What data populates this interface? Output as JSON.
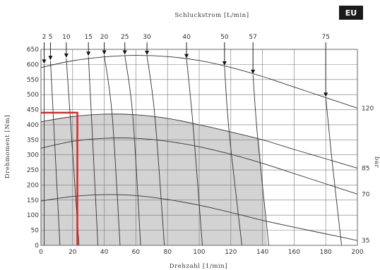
{
  "badge": "EU",
  "chart_data": {
    "type": "line",
    "xlabel": "Drehzahl [1/min]",
    "ylabel": "Drehmoment [Nm]",
    "top_axis_label": "Schluckstrom [L/min]",
    "right_axis_label": "bar",
    "xlim": [
      0,
      200
    ],
    "ylim": [
      0,
      650
    ],
    "x_ticks": [
      0,
      20,
      40,
      60,
      80,
      100,
      120,
      140,
      160,
      180,
      200
    ],
    "y_ticks": [
      0,
      50,
      100,
      150,
      200,
      250,
      300,
      350,
      400,
      450,
      500,
      550,
      600,
      650
    ],
    "grid": true,
    "shaded_region": {
      "upper_curve": [
        [
          0,
          410
        ],
        [
          20,
          427
        ],
        [
          40,
          435
        ],
        [
          60,
          433
        ],
        [
          80,
          421
        ],
        [
          100,
          400
        ],
        [
          120,
          376
        ],
        [
          138,
          354
        ],
        [
          143,
          0
        ]
      ],
      "corner_x": 138
    },
    "pressure_curves": [
      {
        "label": "120",
        "points": [
          [
            0,
            590
          ],
          [
            20,
            612
          ],
          [
            40,
            625
          ],
          [
            60,
            630
          ],
          [
            80,
            626
          ],
          [
            100,
            613
          ],
          [
            120,
            590
          ],
          [
            140,
            560
          ],
          [
            160,
            525
          ],
          [
            180,
            490
          ],
          [
            200,
            455
          ]
        ]
      },
      {
        "label": "85",
        "points": [
          [
            0,
            410
          ],
          [
            20,
            427
          ],
          [
            40,
            435
          ],
          [
            60,
            433
          ],
          [
            80,
            421
          ],
          [
            100,
            400
          ],
          [
            120,
            376
          ],
          [
            140,
            350
          ],
          [
            160,
            318
          ],
          [
            180,
            287
          ],
          [
            200,
            256
          ]
        ]
      },
      {
        "label": "70",
        "points": [
          [
            0,
            322
          ],
          [
            20,
            345
          ],
          [
            40,
            355
          ],
          [
            60,
            355
          ],
          [
            80,
            345
          ],
          [
            100,
            327
          ],
          [
            120,
            302
          ],
          [
            140,
            272
          ],
          [
            160,
            238
          ],
          [
            180,
            204
          ],
          [
            200,
            170
          ]
        ]
      },
      {
        "label": "35",
        "points": [
          [
            0,
            147
          ],
          [
            20,
            162
          ],
          [
            40,
            168
          ],
          [
            60,
            165
          ],
          [
            80,
            152
          ],
          [
            100,
            133
          ],
          [
            120,
            109
          ],
          [
            140,
            83
          ],
          [
            160,
            60
          ],
          [
            180,
            38
          ],
          [
            200,
            16
          ]
        ]
      }
    ],
    "flow_lines": [
      {
        "label": "2",
        "points": [
          [
            2,
            600
          ],
          [
            2,
            0
          ]
        ]
      },
      {
        "label": "5",
        "points": [
          [
            6,
            612
          ],
          [
            12,
            0
          ]
        ]
      },
      {
        "label": "10",
        "points": [
          [
            16,
            620
          ],
          [
            24,
            0
          ]
        ]
      },
      {
        "label": "15",
        "points": [
          [
            30,
            626
          ],
          [
            36,
            0
          ]
        ]
      },
      {
        "label": "20",
        "points": [
          [
            40,
            630
          ],
          [
            45,
            432
          ],
          [
            50,
            0
          ]
        ]
      },
      {
        "label": "25",
        "points": [
          [
            53,
            630
          ],
          [
            58,
            432
          ],
          [
            63,
            0
          ]
        ]
      },
      {
        "label": "30",
        "points": [
          [
            67,
            629
          ],
          [
            72,
            428
          ],
          [
            78,
            0
          ]
        ]
      },
      {
        "label": "40",
        "points": [
          [
            92,
            618
          ],
          [
            96,
            405
          ],
          [
            102,
            0
          ]
        ]
      },
      {
        "label": "50",
        "points": [
          [
            116,
            594
          ],
          [
            119,
            372
          ],
          [
            127,
            0
          ]
        ]
      },
      {
        "label": "57",
        "points": [
          [
            134,
            566
          ],
          [
            137,
            354
          ],
          [
            144,
            0
          ]
        ]
      },
      {
        "label": "75",
        "points": [
          [
            180,
            490
          ],
          [
            184,
            280
          ],
          [
            190,
            0
          ]
        ]
      }
    ],
    "operating_point": {
      "torque": 440,
      "speed": 23
    }
  }
}
